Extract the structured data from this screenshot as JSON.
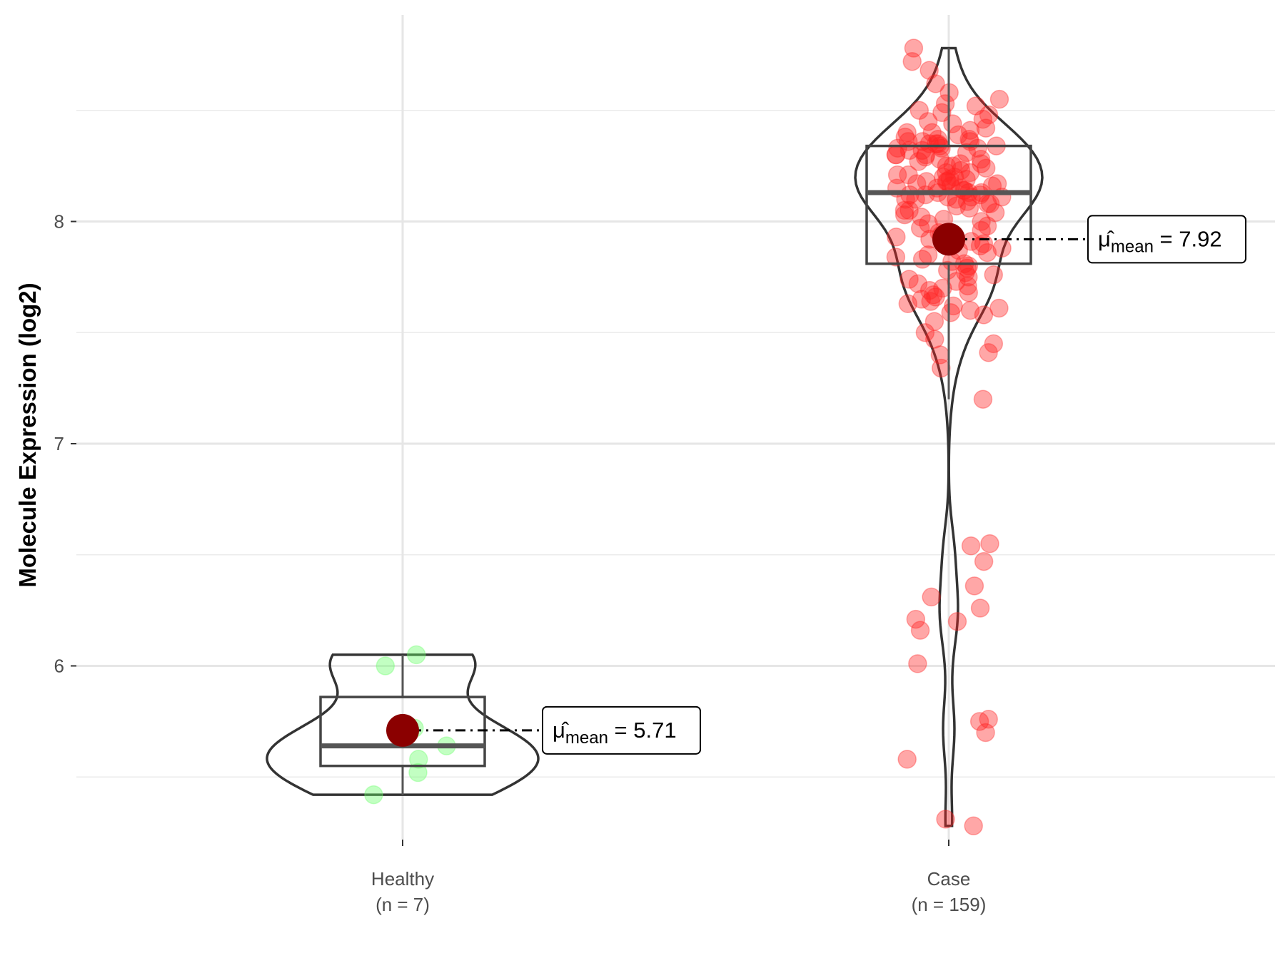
{
  "chart_data": {
    "type": "violin",
    "title": "",
    "xlabel": "",
    "ylabel": "Molecule Expression (log2)",
    "ylim": [
      5.15,
      9.05
    ],
    "yticks": [
      6,
      7,
      8
    ],
    "ytick_labels": [
      "6",
      "7",
      "8"
    ],
    "grid": true,
    "colors": {
      "Healthy": "#66ff66",
      "Case": "#ff2222",
      "mean_point": "#8b0000",
      "outline": "#333333"
    },
    "groups": [
      {
        "name": "Healthy",
        "n_label": "(n = 7)",
        "values": [
          6.05,
          6.0,
          5.72,
          5.64,
          5.58,
          5.52,
          5.42
        ],
        "box": {
          "whisker_low": 5.42,
          "q1": 5.55,
          "median": 5.64,
          "q3": 5.86,
          "whisker_high": 6.05
        },
        "mean": 5.71,
        "mean_label": {
          "symbol": "μ̂",
          "sub": "mean",
          "text": "= 5.71"
        }
      },
      {
        "name": "Case",
        "n_label": "(n = 159)",
        "values": [
          6.55,
          6.54,
          6.47,
          6.36,
          6.31,
          6.26,
          6.21,
          6.2,
          6.16,
          6.01,
          5.75,
          5.76,
          5.7,
          5.58,
          5.31,
          5.28,
          7.55,
          7.5,
          7.47,
          7.45,
          7.41,
          7.4,
          7.34,
          7.2,
          8.78,
          8.72,
          8.68,
          8.62,
          8.58,
          8.55,
          8.53,
          8.52,
          8.5,
          8.49,
          8.48,
          8.46,
          8.45,
          8.44,
          8.42,
          8.41,
          8.4,
          8.39,
          8.38,
          8.37,
          8.37,
          8.36,
          8.36,
          8.35,
          8.35,
          8.34,
          8.34,
          8.33,
          8.33,
          8.32,
          8.32,
          8.31,
          8.3,
          8.3,
          8.29,
          8.28,
          8.27,
          8.26,
          8.25,
          8.25,
          8.24,
          8.23,
          8.22,
          8.21,
          8.2,
          8.2,
          8.19,
          8.19,
          8.18,
          8.18,
          8.17,
          8.17,
          8.16,
          8.16,
          8.15,
          8.15,
          8.14,
          8.14,
          8.13,
          8.13,
          8.13,
          8.12,
          8.12,
          8.11,
          8.11,
          8.1,
          8.1,
          8.09,
          8.08,
          8.07,
          8.06,
          8.05,
          8.04,
          8.03,
          8.02,
          8.01,
          8.0,
          7.99,
          7.98,
          7.97,
          7.96,
          7.95,
          7.94,
          7.93,
          7.92,
          7.91,
          7.9,
          7.89,
          7.88,
          7.87,
          7.86,
          7.85,
          7.84,
          7.83,
          7.82,
          7.81,
          7.8,
          7.79,
          7.78,
          7.77,
          7.76,
          7.75,
          7.74,
          7.73,
          7.72,
          7.71,
          7.7,
          7.69,
          7.68,
          7.67,
          7.66,
          7.65,
          7.64,
          7.63,
          7.62,
          7.61,
          7.6,
          7.59,
          7.58,
          8.28,
          8.35,
          8.22,
          8.18,
          8.12,
          8.08,
          8.4,
          8.3,
          8.26,
          8.15,
          8.1,
          8.05,
          8.36,
          8.21,
          8.33,
          8.11
        ],
        "box": {
          "whisker_low": 7.2,
          "q1": 7.81,
          "median": 8.13,
          "q3": 8.34,
          "whisker_high": 8.78
        },
        "mean": 7.92,
        "mean_label": {
          "symbol": "μ̂",
          "sub": "mean",
          "text": "= 7.92"
        }
      }
    ]
  }
}
